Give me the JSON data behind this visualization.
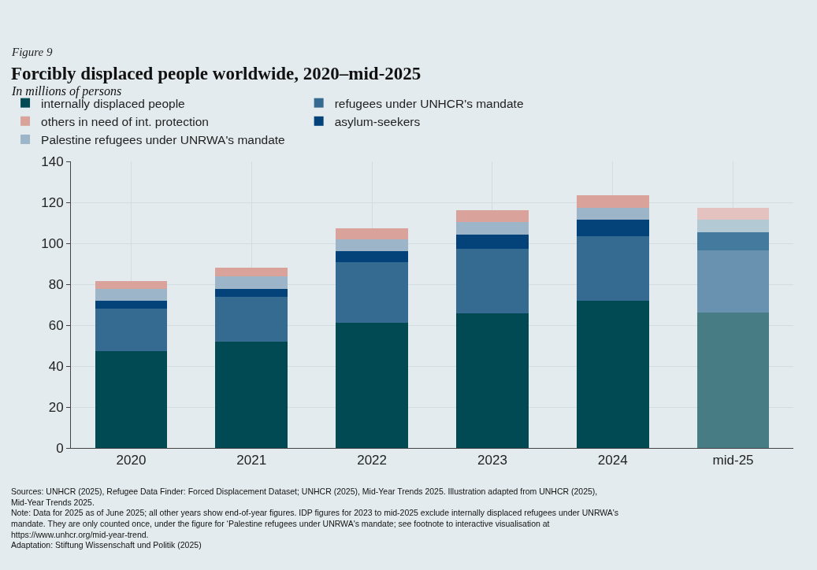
{
  "chart_data": {
    "type": "bar",
    "stacked": true,
    "title": "Forcibly displaced people worldwide, 2020–mid-2025",
    "subtitle": "In millions of persons",
    "categories": [
      "2020",
      "2021",
      "2022",
      "2023",
      "2024",
      "mid-25"
    ],
    "series": [
      {
        "name": "internally displaced people",
        "color": "#024a53",
        "colors": [
          null,
          null,
          null,
          null,
          null,
          "#477c84"
        ],
        "values": [
          47.2,
          51.9,
          61.2,
          65.6,
          71.9,
          66.2
        ]
      },
      {
        "name": "refugees under UNHCR's mandate",
        "color": "#366b91",
        "colors": [
          null,
          null,
          null,
          null,
          null,
          "#6991b0"
        ],
        "values": [
          20.9,
          21.9,
          29.7,
          31.7,
          31.5,
          30.5
        ]
      },
      {
        "name": "asylum-seekers",
        "color": "#03437a",
        "colors": [
          null,
          null,
          null,
          null,
          null,
          "#457a9f"
        ],
        "values": [
          3.9,
          4.0,
          5.1,
          7.1,
          8.1,
          8.5
        ]
      },
      {
        "name": "Palestine refugees under UNRWA's mandate",
        "color": "#9db5c9",
        "colors": [
          null,
          null,
          null,
          null,
          null,
          "#b3c9d4"
        ],
        "values": [
          5.8,
          6.2,
          5.8,
          5.8,
          5.7,
          6.3
        ]
      },
      {
        "name": "others in need of int. protection",
        "color": "#d9a39c",
        "colors": [
          null,
          null,
          null,
          null,
          null,
          "#e3c2c0"
        ],
        "values": [
          3.7,
          4.2,
          5.4,
          5.8,
          6.1,
          5.7
        ]
      }
    ],
    "ylim": [
      0,
      140
    ],
    "yticks": [
      0,
      20,
      40,
      60,
      80,
      100,
      120,
      140
    ],
    "grid": true,
    "legend": "top",
    "annotations": [
      "Figure 9",
      "Sources: UNHCR (2025), Refugee Data Finder: Forced Displacement Dataset; UNHCR (2025), Mid-Year Trends 2025. Illustration adapted from UNHCR (2025),\nMid-Year Trends 2025.\nNote: Data for 2025 as of June 2025; all other years show end-of-year figures. IDP figures for 2023 to mid-2025 exclude internally displaced refugees under UNRWA's\nmandate. They are only counted once, under the figure for ‘Palestine refugees under UNRWA's mandate; see footnote to interactive visualisation at\nhttps://www.unhcr.org/mid-year-trend.\nAdaptation: Stiftung Wissenschaft und Politik (2025)"
    ]
  }
}
